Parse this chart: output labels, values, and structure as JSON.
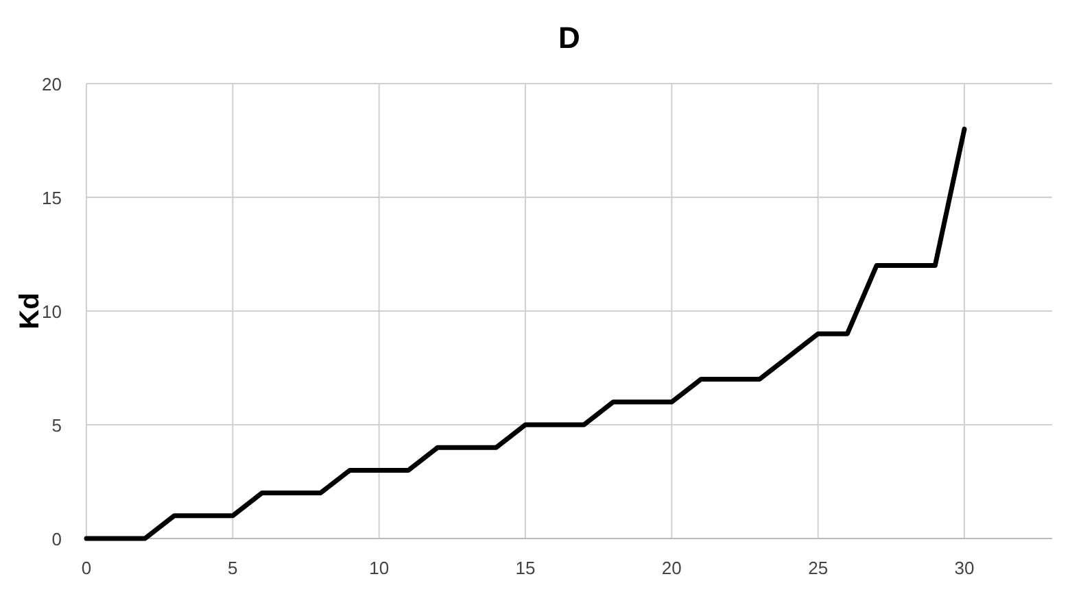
{
  "chart_data": {
    "type": "line",
    "title": "D",
    "ylabel": "Kd",
    "x": [
      0,
      2,
      3,
      5,
      6,
      8,
      9,
      11,
      12,
      14,
      15,
      17,
      18,
      20,
      21,
      23,
      24,
      25,
      26,
      27,
      29,
      30
    ],
    "series": [
      {
        "color": "#000000",
        "values": [
          0,
          0,
          1,
          1,
          2,
          2,
          3,
          3,
          4,
          4,
          5,
          5,
          6,
          6,
          7,
          7,
          8,
          9,
          9,
          12,
          12,
          18
        ]
      }
    ],
    "xlim": [
      0,
      33
    ],
    "xticks": [
      0,
      5,
      10,
      15,
      20,
      25,
      30
    ],
    "ylim": [
      0,
      20
    ],
    "yticks": [
      0,
      5,
      10,
      15,
      20
    ],
    "grid": true,
    "marker": "none",
    "line_style": "solid"
  }
}
